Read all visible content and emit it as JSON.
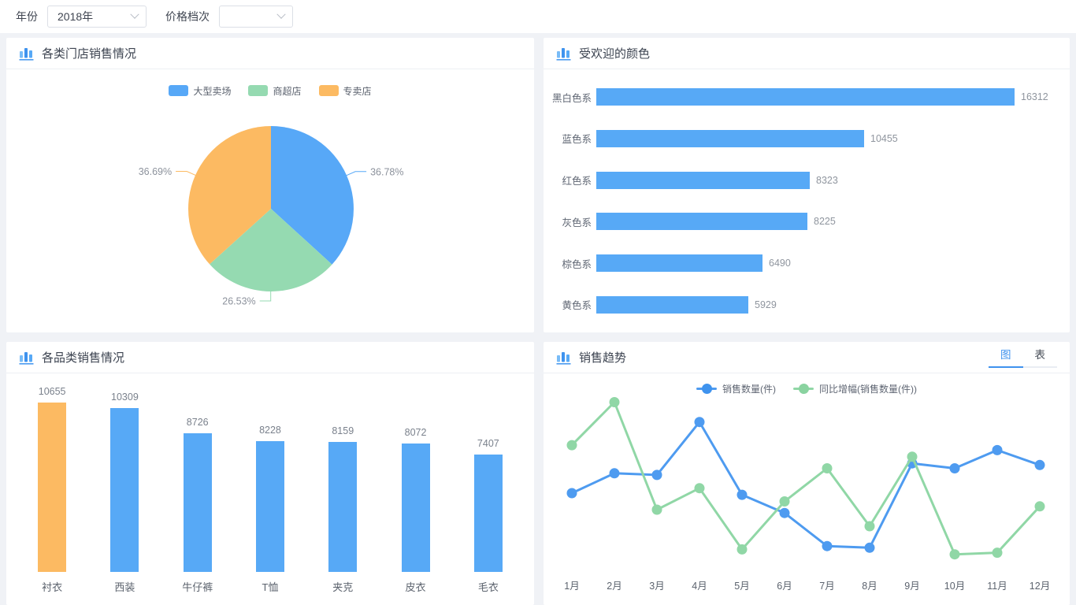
{
  "filters": {
    "year_label": "年份",
    "year_value": "2018年",
    "price_label": "价格档次",
    "price_value": ""
  },
  "panels": {
    "store_sales": {
      "title": "各类门店销售情况",
      "chart_data": {
        "type": "pie",
        "title": "各类门店销售情况",
        "legend_position": "top",
        "slices": [
          {
            "name": "大型卖场",
            "percent": 36.78,
            "label": "36.78%",
            "color": "#57a8f7"
          },
          {
            "name": "商超店",
            "percent": 26.53,
            "label": "26.53%",
            "color": "#95dab1"
          },
          {
            "name": "专卖店",
            "percent": 36.69,
            "label": "36.69%",
            "color": "#fcba62"
          }
        ]
      }
    },
    "popular_colors": {
      "title": "受欢迎的颜色",
      "chart_data": {
        "type": "bar",
        "orientation": "horizontal",
        "title": "受欢迎的颜色",
        "categories": [
          "黑白色系",
          "蓝色系",
          "红色系",
          "灰色系",
          "棕色系",
          "黄色系"
        ],
        "values": [
          16312,
          10455,
          8323,
          8225,
          6490,
          5929
        ],
        "bar_color": "#57a9f6",
        "xlim": [
          0,
          16312
        ],
        "grid": false,
        "value_labels": true
      }
    },
    "category_sales": {
      "title": "各品类销售情况",
      "chart_data": {
        "type": "bar",
        "orientation": "vertical",
        "title": "各品类销售情况",
        "categories": [
          "衬衣",
          "西装",
          "牛仔裤",
          "T恤",
          "夹克",
          "皮衣",
          "毛衣"
        ],
        "values": [
          10655,
          10309,
          8726,
          8228,
          8159,
          8072,
          7407
        ],
        "bar_color": "#57a9f6",
        "highlight_index": 0,
        "highlight_color": "#fcba62",
        "ylim": [
          0,
          10655
        ],
        "grid": false,
        "value_labels": true,
        "y_axis_visible": false
      }
    },
    "sales_trend": {
      "title": "销售趋势",
      "tabs": {
        "chart": "图",
        "table": "表"
      },
      "active_tab": "图",
      "chart_data": {
        "type": "line",
        "title": "销售趋势",
        "x": [
          "1月",
          "2月",
          "3月",
          "4月",
          "5月",
          "6月",
          "7月",
          "8月",
          "9月",
          "10月",
          "11月",
          "12月"
        ],
        "series": [
          {
            "name": "销售数量(件)",
            "color": "#4e9bf0",
            "values": [
              40,
              52,
              51,
              83,
              39,
              28,
              8,
              7,
              58,
              55,
              66,
              57
            ]
          },
          {
            "name": "同比增幅(销售数量(件))",
            "color": "#90d7a6",
            "values": [
              69,
              95,
              30,
              43,
              6,
              35,
              55,
              20,
              62,
              3,
              4,
              32
            ]
          }
        ],
        "legend_position": "top",
        "y_axis_visible": false,
        "ylim": [
          0,
          100
        ],
        "note": "y-axis unlabeled in source; values are estimated relative units 0-100"
      }
    }
  }
}
